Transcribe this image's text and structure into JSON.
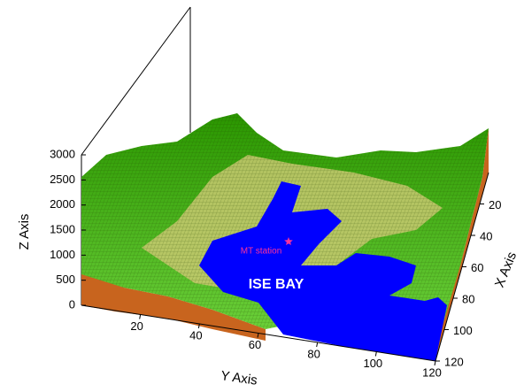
{
  "chart_data": {
    "type": "surface3d",
    "xlabel": "X Axis",
    "ylabel": "Y Axis",
    "zlabel": "Z Axis",
    "xlim": [
      0,
      120
    ],
    "xticks": [
      20,
      40,
      60,
      80,
      100,
      120
    ],
    "ylim": [
      0,
      120
    ],
    "yticks": [
      20,
      40,
      60,
      80,
      100,
      120
    ],
    "zlim": [
      0,
      3000
    ],
    "zticks": [
      0,
      500,
      1000,
      1500,
      2000,
      2500,
      3000
    ],
    "annotations": [
      {
        "text": "MT station",
        "color": "#ff3399"
      },
      {
        "text": "ISE BAY",
        "color": "#ffffff"
      }
    ],
    "colors": {
      "land": "#3cb400",
      "highland": "#c8c870",
      "water": "#0000ff",
      "side": "#c8641e"
    }
  }
}
